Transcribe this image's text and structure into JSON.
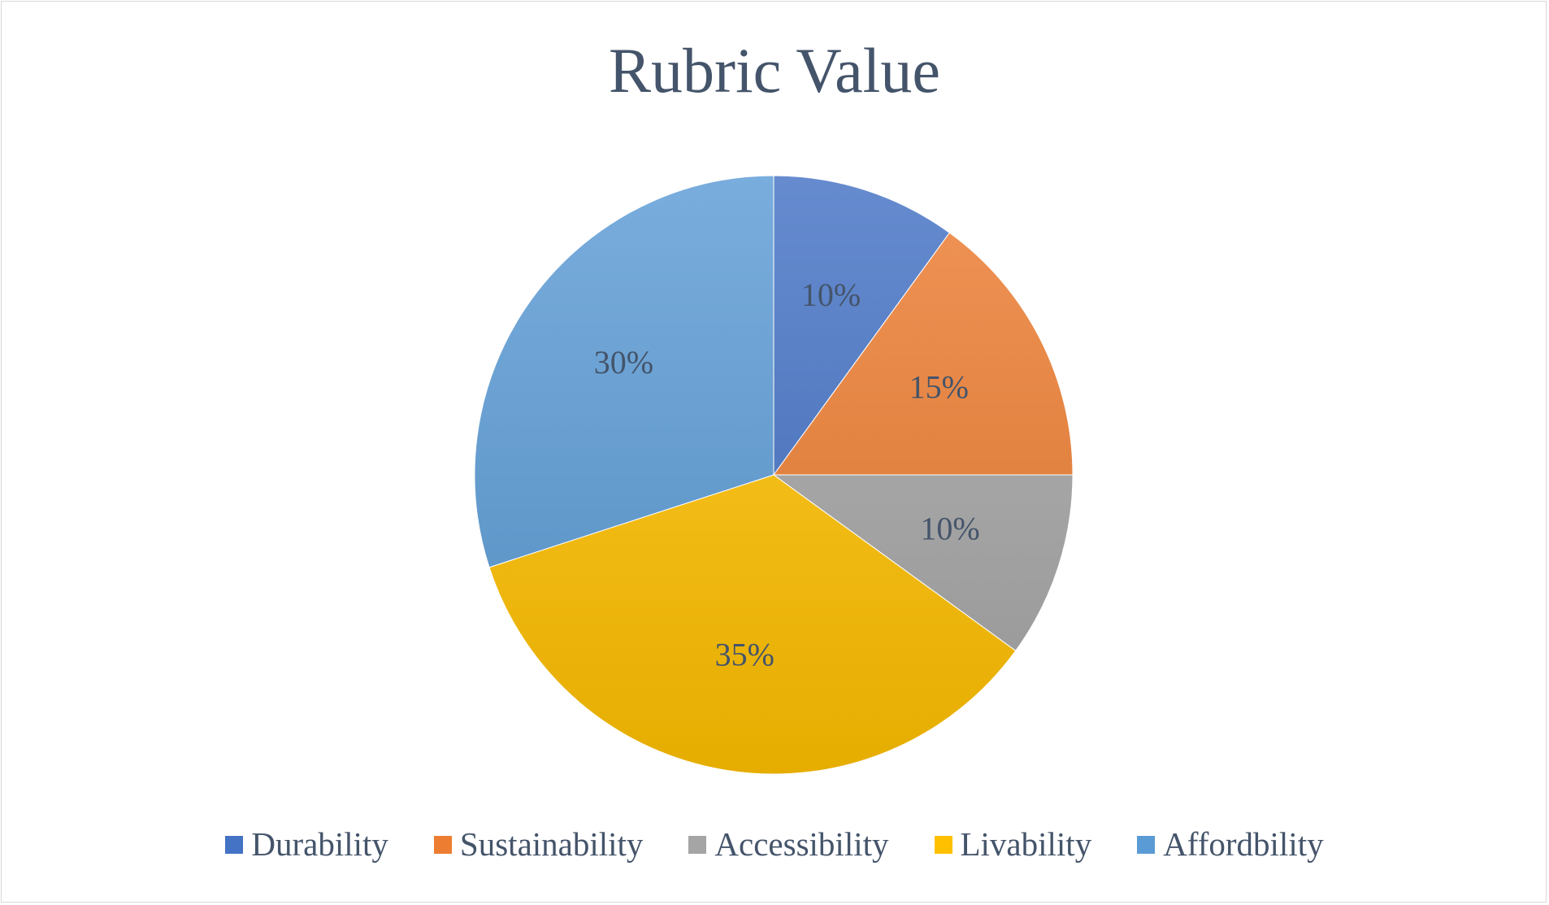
{
  "chart_data": {
    "type": "pie",
    "title": "Rubric Value",
    "categories": [
      "Durability",
      "Sustainability",
      "Accessibility",
      "Livability",
      "Affordbility"
    ],
    "values": [
      10,
      15,
      10,
      35,
      30
    ],
    "labels": [
      "10%",
      "15%",
      "10%",
      "35%",
      "30%"
    ],
    "colors": [
      "#4472c4",
      "#ed7d31",
      "#a5a5a5",
      "#ffc000",
      "#5b9bd5"
    ],
    "legend_position": "bottom",
    "start_angle": "12 o'clock, clockwise"
  }
}
